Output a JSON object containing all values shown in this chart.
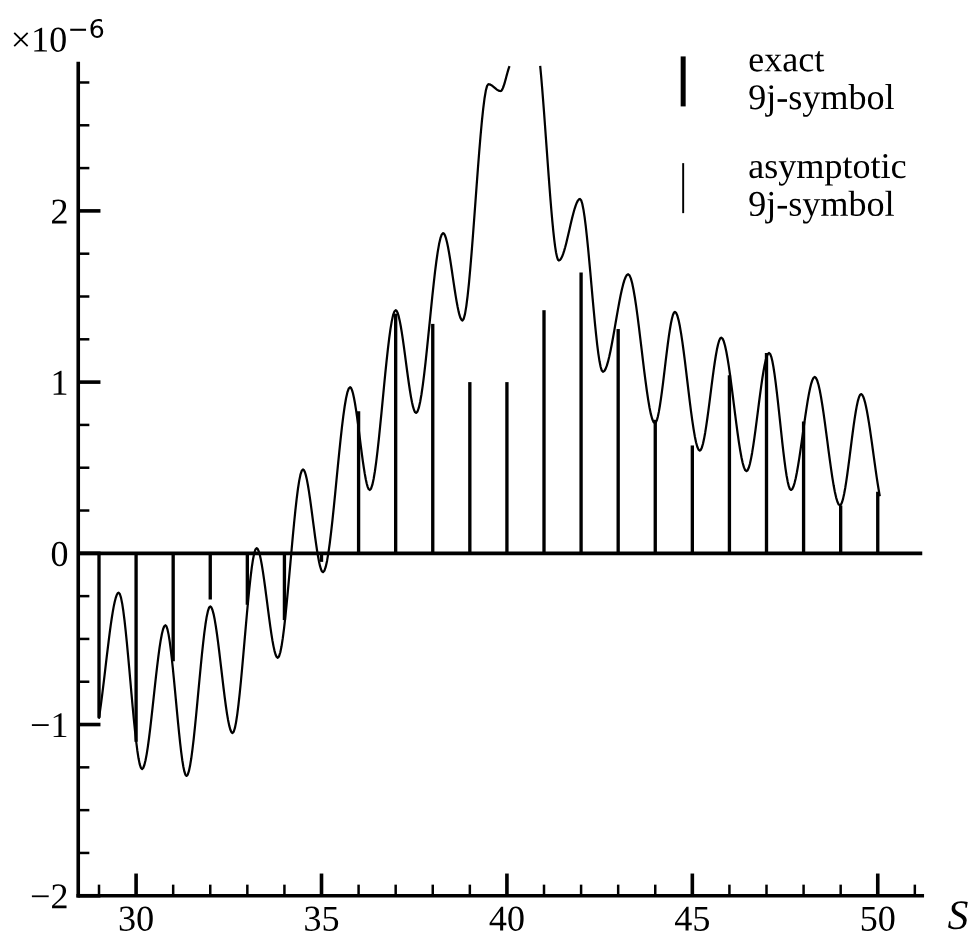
{
  "chart_data": {
    "type": "bar",
    "xlabel": "S",
    "ylabel": "×10$^{−6}$",
    "x": [
      29,
      30,
      31,
      32,
      33,
      34,
      35,
      36,
      37,
      38,
      39,
      40,
      41,
      42,
      43,
      44,
      45,
      46,
      47,
      48,
      49,
      50
    ],
    "series": [
      {
        "name": "exact\n9j-symbol",
        "color": "#000000",
        "values": [
          -0.96,
          -1.1,
          -0.63,
          -0.27,
          -0.3,
          -0.39,
          -0.05,
          0.83,
          1.4,
          1.34,
          1.0,
          1.0,
          1.42,
          1.64,
          1.31,
          0.78,
          0.63,
          1.04,
          1.17,
          0.77,
          0.28,
          0.36
        ]
      },
      {
        "name": "asymptotic\n9j-symbol",
        "type": "line",
        "color": "#000000",
        "x": [
          29,
          29.53,
          30.16,
          30.79,
          31.36,
          32.0,
          32.6,
          33.25,
          33.82,
          34.5,
          35.04,
          35.77,
          36.3,
          37.0,
          37.55,
          38.28,
          38.8,
          39.5,
          39.83,
          40.06,
          40.5,
          40.9,
          41.4,
          41.97,
          42.59,
          43.27,
          43.99,
          44.53,
          45.2,
          45.78,
          46.46,
          47.07,
          47.66,
          48.3,
          48.98,
          49.55,
          50.05
        ],
        "values": [
          -0.96,
          -0.23,
          -1.26,
          -0.42,
          -1.3,
          -0.31,
          -1.05,
          0.03,
          -0.61,
          0.49,
          -0.11,
          0.97,
          0.37,
          1.42,
          0.82,
          1.87,
          1.36,
          2.74,
          2.7,
          2.84,
          null,
          2.84,
          1.71,
          2.07,
          1.06,
          1.63,
          0.76,
          1.41,
          0.6,
          1.26,
          0.48,
          1.17,
          0.37,
          1.03,
          0.28,
          0.93,
          0.34
        ]
      }
    ],
    "xlim": [
      28.44,
      51.2
    ],
    "ylim": [
      -2,
      2.86
    ],
    "xticks": [
      30,
      35,
      40,
      45,
      50
    ],
    "yticks": [
      -2,
      -1,
      0,
      1,
      2
    ],
    "ref_lines": [
      {
        "axis": "y",
        "value": 0,
        "color": "#000000"
      }
    ],
    "legend": "top right",
    "grid": false
  }
}
